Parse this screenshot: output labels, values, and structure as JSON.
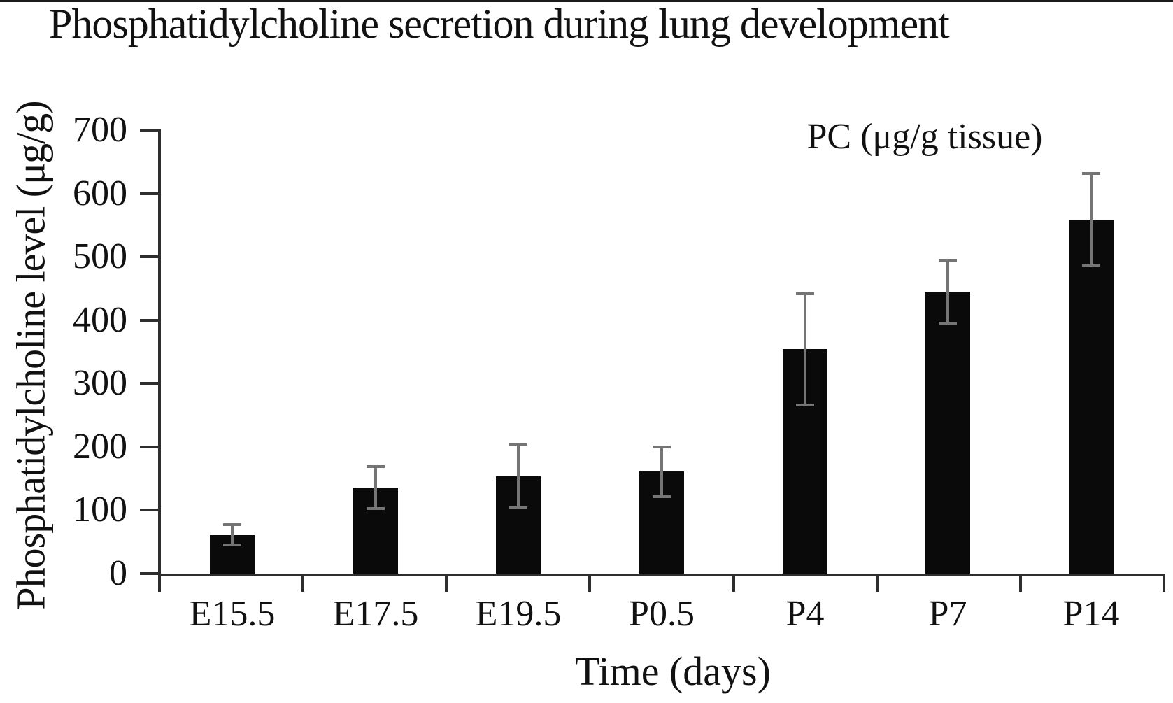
{
  "chart_data": {
    "type": "bar",
    "title": "Phosphatidylcholine secretion during lung development",
    "xlabel": "Time (days)",
    "ylabel": "Phosphatidylcholine level (μg/g)",
    "legend": "PC (μg/g tissue)",
    "legend_position": "top-right",
    "categories": [
      "E15.5",
      "E17.5",
      "E19.5",
      "P0.5",
      "P4",
      "P7",
      "P14"
    ],
    "series": [
      {
        "name": "PC (μg/g tissue)",
        "values": [
          61,
          136,
          154,
          161,
          354,
          445,
          559
        ],
        "errors": [
          16,
          33,
          50,
          39,
          88,
          50,
          73
        ]
      }
    ],
    "values": [
      61,
      136,
      154,
      161,
      354,
      445,
      559
    ],
    "errors": [
      16,
      33,
      50,
      39,
      88,
      50,
      73
    ],
    "ylim": [
      0,
      700
    ],
    "yticks": [
      0,
      100,
      200,
      300,
      400,
      500,
      600,
      700
    ],
    "grid": false,
    "colors": {
      "bar": "#0a0a0a",
      "error": "#757575",
      "axis": "#2e2e2e",
      "text": "#111111",
      "background": "#ffffff"
    }
  }
}
